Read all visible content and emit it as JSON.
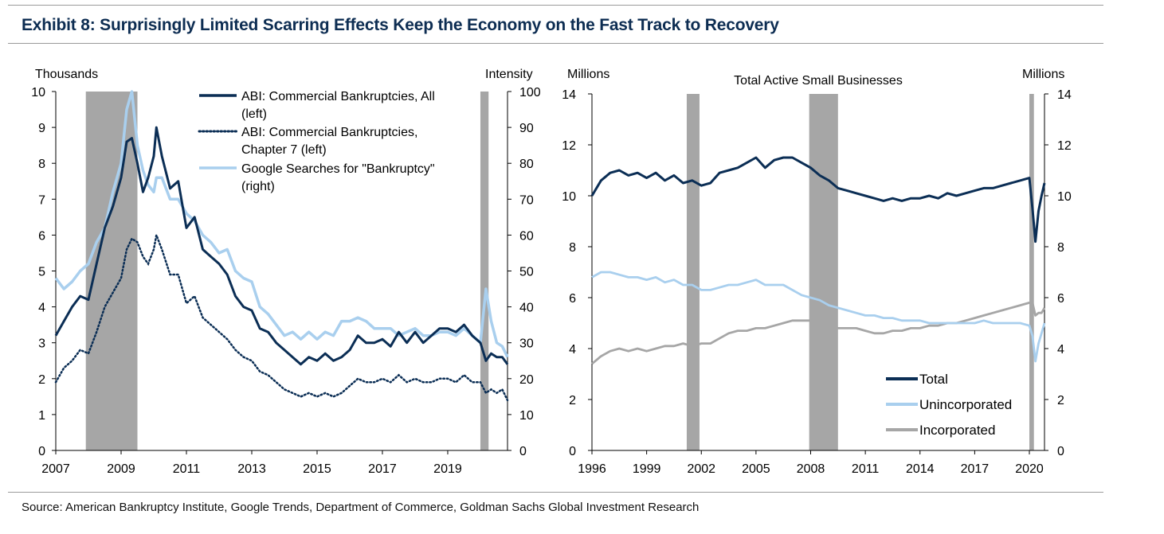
{
  "title": "Exhibit 8: Surprisingly Limited Scarring Effects Keep the Economy on the Fast Track to Recovery",
  "source": "Source: American Bankruptcy Institute, Google Trends, Department of Commerce, Goldman Sachs Global Investment Research",
  "colors": {
    "navy": "#0b2e55",
    "light_blue": "#a9cfee",
    "gray": "#a6a6a6",
    "recession": "#a6a6a6"
  },
  "chart_data": [
    {
      "type": "line",
      "title": "",
      "ylabel_left": "Thousands",
      "ylabel_right": "Intensity",
      "xlim": [
        2007,
        2020.83
      ],
      "ylim_left": [
        0,
        10
      ],
      "ylim_right": [
        0,
        100
      ],
      "x_ticks": [
        "2007",
        "2009",
        "2011",
        "2013",
        "2015",
        "2017",
        "2019"
      ],
      "x_tick_values": [
        2007,
        2009,
        2011,
        2013,
        2015,
        2017,
        2019
      ],
      "y_ticks_left": [
        "0",
        "1",
        "2",
        "3",
        "4",
        "5",
        "6",
        "7",
        "8",
        "9",
        "10"
      ],
      "y_ticks_right": [
        "0",
        "10",
        "20",
        "30",
        "40",
        "50",
        "60",
        "70",
        "80",
        "90",
        "100"
      ],
      "recessions": [
        [
          2007.92,
          2009.5
        ],
        [
          2020.0,
          2020.25
        ]
      ],
      "legend": [
        {
          "label_lines": [
            "ABI: Commercial Bankruptcies, All",
            "(left)"
          ],
          "style": "solid",
          "color": "#0b2e55"
        },
        {
          "label_lines": [
            "ABI: Commercial Bankruptcies,",
            "Chapter 7 (left)"
          ],
          "style": "dotted",
          "color": "#0b2e55"
        },
        {
          "label_lines": [
            "Google Searches for \"Bankruptcy\"",
            "(right)"
          ],
          "style": "solid",
          "color": "#a9cfee"
        }
      ],
      "series": [
        {
          "name": "ABI: Commercial Bankruptcies, All",
          "axis": "left",
          "x": [
            2007.0,
            2007.25,
            2007.5,
            2007.75,
            2008.0,
            2008.25,
            2008.5,
            2008.75,
            2009.0,
            2009.17,
            2009.33,
            2009.5,
            2009.67,
            2009.83,
            2010.0,
            2010.08,
            2010.25,
            2010.5,
            2010.75,
            2011.0,
            2011.25,
            2011.5,
            2011.75,
            2012.0,
            2012.25,
            2012.5,
            2012.75,
            2013.0,
            2013.25,
            2013.5,
            2013.75,
            2014.0,
            2014.25,
            2014.5,
            2014.75,
            2015.0,
            2015.25,
            2015.5,
            2015.75,
            2016.0,
            2016.25,
            2016.5,
            2016.75,
            2017.0,
            2017.25,
            2017.5,
            2017.75,
            2018.0,
            2018.25,
            2018.5,
            2018.75,
            2019.0,
            2019.25,
            2019.5,
            2019.75,
            2020.0,
            2020.17,
            2020.33,
            2020.5,
            2020.67,
            2020.83
          ],
          "values": [
            3.2,
            3.6,
            4.0,
            4.3,
            4.2,
            5.2,
            6.2,
            6.8,
            7.6,
            8.6,
            8.7,
            8.0,
            7.2,
            7.6,
            8.2,
            9.0,
            8.2,
            7.3,
            7.5,
            6.2,
            6.5,
            5.6,
            5.4,
            5.2,
            4.9,
            4.3,
            4.0,
            3.9,
            3.4,
            3.3,
            3.0,
            2.8,
            2.6,
            2.4,
            2.6,
            2.5,
            2.7,
            2.5,
            2.6,
            2.8,
            3.2,
            3.0,
            3.0,
            3.1,
            2.9,
            3.3,
            3.0,
            3.3,
            3.0,
            3.2,
            3.4,
            3.4,
            3.3,
            3.5,
            3.2,
            3.0,
            2.5,
            2.7,
            2.6,
            2.6,
            2.4
          ]
        },
        {
          "name": "ABI: Commercial Bankruptcies, Chapter 7",
          "axis": "left",
          "x": [
            2007.0,
            2007.25,
            2007.5,
            2007.75,
            2008.0,
            2008.25,
            2008.5,
            2008.75,
            2009.0,
            2009.17,
            2009.33,
            2009.5,
            2009.67,
            2009.83,
            2010.0,
            2010.08,
            2010.25,
            2010.5,
            2010.75,
            2011.0,
            2011.25,
            2011.5,
            2011.75,
            2012.0,
            2012.25,
            2012.5,
            2012.75,
            2013.0,
            2013.25,
            2013.5,
            2013.75,
            2014.0,
            2014.25,
            2014.5,
            2014.75,
            2015.0,
            2015.25,
            2015.5,
            2015.75,
            2016.0,
            2016.25,
            2016.5,
            2016.75,
            2017.0,
            2017.25,
            2017.5,
            2017.75,
            2018.0,
            2018.25,
            2018.5,
            2018.75,
            2019.0,
            2019.25,
            2019.5,
            2019.75,
            2020.0,
            2020.17,
            2020.33,
            2020.5,
            2020.67,
            2020.83
          ],
          "values": [
            1.9,
            2.3,
            2.5,
            2.8,
            2.7,
            3.3,
            4.0,
            4.4,
            4.8,
            5.6,
            5.9,
            5.8,
            5.4,
            5.2,
            5.6,
            6.0,
            5.6,
            4.9,
            4.9,
            4.1,
            4.3,
            3.7,
            3.5,
            3.3,
            3.1,
            2.8,
            2.6,
            2.5,
            2.2,
            2.1,
            1.9,
            1.7,
            1.6,
            1.5,
            1.6,
            1.5,
            1.6,
            1.5,
            1.6,
            1.8,
            2.0,
            1.9,
            1.9,
            2.0,
            1.9,
            2.1,
            1.9,
            2.0,
            1.9,
            1.9,
            2.0,
            2.0,
            1.9,
            2.1,
            1.9,
            1.9,
            1.6,
            1.7,
            1.6,
            1.7,
            1.4
          ]
        },
        {
          "name": "Google Searches for \"Bankruptcy\"",
          "axis": "right",
          "x": [
            2007.0,
            2007.25,
            2007.5,
            2007.75,
            2008.0,
            2008.25,
            2008.5,
            2008.75,
            2009.0,
            2009.17,
            2009.33,
            2009.5,
            2009.67,
            2009.83,
            2010.0,
            2010.08,
            2010.25,
            2010.5,
            2010.75,
            2011.0,
            2011.25,
            2011.5,
            2011.75,
            2012.0,
            2012.25,
            2012.5,
            2012.75,
            2013.0,
            2013.25,
            2013.5,
            2013.75,
            2014.0,
            2014.25,
            2014.5,
            2014.75,
            2015.0,
            2015.25,
            2015.5,
            2015.75,
            2016.0,
            2016.25,
            2016.5,
            2016.75,
            2017.0,
            2017.25,
            2017.5,
            2017.75,
            2018.0,
            2018.25,
            2018.5,
            2018.75,
            2019.0,
            2019.25,
            2019.5,
            2019.75,
            2020.0,
            2020.17,
            2020.33,
            2020.5,
            2020.67,
            2020.83
          ],
          "values": [
            48,
            45,
            47,
            50,
            52,
            58,
            62,
            72,
            80,
            95,
            100,
            85,
            78,
            74,
            72,
            76,
            76,
            70,
            70,
            66,
            64,
            60,
            58,
            55,
            56,
            50,
            48,
            47,
            40,
            38,
            35,
            32,
            33,
            31,
            33,
            31,
            33,
            32,
            36,
            36,
            37,
            36,
            34,
            34,
            34,
            32,
            33,
            34,
            32,
            32,
            33,
            33,
            32,
            34,
            32,
            30,
            45,
            36,
            30,
            29,
            26
          ]
        }
      ]
    },
    {
      "type": "line",
      "title": "Total Active Small Businesses",
      "ylabel_left": "Millions",
      "ylabel_right": "Millions",
      "xlim": [
        1996,
        2020.83
      ],
      "ylim_left": [
        0,
        14
      ],
      "ylim_right": [
        0,
        14
      ],
      "x_ticks": [
        "1996",
        "1999",
        "2002",
        "2005",
        "2008",
        "2011",
        "2014",
        "2017",
        "2020"
      ],
      "x_tick_values": [
        1996,
        1999,
        2002,
        2005,
        2008,
        2011,
        2014,
        2017,
        2020
      ],
      "y_ticks_left": [
        "0",
        "2",
        "4",
        "6",
        "8",
        "10",
        "12",
        "14"
      ],
      "y_ticks_right": [
        "0",
        "2",
        "4",
        "6",
        "8",
        "10",
        "12",
        "14"
      ],
      "recessions": [
        [
          2001.2,
          2001.9
        ],
        [
          2007.92,
          2009.5
        ],
        [
          2020.0,
          2020.25
        ]
      ],
      "legend": [
        {
          "label": "Total",
          "color": "#0b2e55"
        },
        {
          "label": "Unincorporated",
          "color": "#a9cfee"
        },
        {
          "label": "Incorporated",
          "color": "#a6a6a6"
        }
      ],
      "series": [
        {
          "name": "Total",
          "x": [
            1996.0,
            1996.5,
            1997.0,
            1997.5,
            1998.0,
            1998.5,
            1999.0,
            1999.5,
            2000.0,
            2000.5,
            2001.0,
            2001.5,
            2002.0,
            2002.5,
            2003.0,
            2003.5,
            2004.0,
            2004.5,
            2005.0,
            2005.5,
            2006.0,
            2006.5,
            2007.0,
            2007.5,
            2008.0,
            2008.5,
            2009.0,
            2009.5,
            2010.0,
            2010.5,
            2011.0,
            2011.5,
            2012.0,
            2012.5,
            2013.0,
            2013.5,
            2014.0,
            2014.5,
            2015.0,
            2015.5,
            2016.0,
            2016.5,
            2017.0,
            2017.5,
            2018.0,
            2018.5,
            2019.0,
            2019.5,
            2020.0,
            2020.17,
            2020.33,
            2020.5,
            2020.67,
            2020.83
          ],
          "values": [
            10.0,
            10.6,
            10.9,
            11.0,
            10.8,
            10.9,
            10.7,
            10.9,
            10.6,
            10.8,
            10.5,
            10.6,
            10.4,
            10.5,
            10.9,
            11.0,
            11.1,
            11.3,
            11.5,
            11.1,
            11.4,
            11.5,
            11.5,
            11.3,
            11.1,
            10.8,
            10.6,
            10.3,
            10.2,
            10.1,
            10.0,
            9.9,
            9.8,
            9.9,
            9.8,
            9.9,
            9.9,
            10.0,
            9.9,
            10.1,
            10.0,
            10.1,
            10.2,
            10.3,
            10.3,
            10.4,
            10.5,
            10.6,
            10.7,
            9.5,
            8.2,
            9.4,
            10.0,
            10.5
          ]
        },
        {
          "name": "Unincorporated",
          "x": [
            1996.0,
            1996.5,
            1997.0,
            1997.5,
            1998.0,
            1998.5,
            1999.0,
            1999.5,
            2000.0,
            2000.5,
            2001.0,
            2001.5,
            2002.0,
            2002.5,
            2003.0,
            2003.5,
            2004.0,
            2004.5,
            2005.0,
            2005.5,
            2006.0,
            2006.5,
            2007.0,
            2007.5,
            2008.0,
            2008.5,
            2009.0,
            2009.5,
            2010.0,
            2010.5,
            2011.0,
            2011.5,
            2012.0,
            2012.5,
            2013.0,
            2013.5,
            2014.0,
            2014.5,
            2015.0,
            2015.5,
            2016.0,
            2016.5,
            2017.0,
            2017.5,
            2018.0,
            2018.5,
            2019.0,
            2019.5,
            2020.0,
            2020.17,
            2020.33,
            2020.5,
            2020.67,
            2020.83
          ],
          "values": [
            6.8,
            7.0,
            7.0,
            6.9,
            6.8,
            6.8,
            6.7,
            6.8,
            6.6,
            6.7,
            6.5,
            6.5,
            6.3,
            6.3,
            6.4,
            6.5,
            6.5,
            6.6,
            6.7,
            6.5,
            6.5,
            6.5,
            6.3,
            6.1,
            6.0,
            5.9,
            5.7,
            5.6,
            5.5,
            5.4,
            5.3,
            5.3,
            5.2,
            5.2,
            5.1,
            5.1,
            5.1,
            5.0,
            5.0,
            5.0,
            5.0,
            5.0,
            5.0,
            5.1,
            5.0,
            5.0,
            5.0,
            5.0,
            4.9,
            4.5,
            3.5,
            4.2,
            4.6,
            5.0
          ]
        },
        {
          "name": "Incorporated",
          "x": [
            1996.0,
            1996.5,
            1997.0,
            1997.5,
            1998.0,
            1998.5,
            1999.0,
            1999.5,
            2000.0,
            2000.5,
            2001.0,
            2001.5,
            2002.0,
            2002.5,
            2003.0,
            2003.5,
            2004.0,
            2004.5,
            2005.0,
            2005.5,
            2006.0,
            2006.5,
            2007.0,
            2007.5,
            2008.0,
            2008.5,
            2009.0,
            2009.5,
            2010.0,
            2010.5,
            2011.0,
            2011.5,
            2012.0,
            2012.5,
            2013.0,
            2013.5,
            2014.0,
            2014.5,
            2015.0,
            2015.5,
            2016.0,
            2016.5,
            2017.0,
            2017.5,
            2018.0,
            2018.5,
            2019.0,
            2019.5,
            2020.0,
            2020.17,
            2020.33,
            2020.5,
            2020.67,
            2020.83
          ],
          "values": [
            3.4,
            3.7,
            3.9,
            4.0,
            3.9,
            4.0,
            3.9,
            4.0,
            4.1,
            4.1,
            4.2,
            4.1,
            4.2,
            4.2,
            4.4,
            4.6,
            4.7,
            4.7,
            4.8,
            4.8,
            4.9,
            5.0,
            5.1,
            5.1,
            5.1,
            5.0,
            4.9,
            4.8,
            4.8,
            4.8,
            4.7,
            4.6,
            4.6,
            4.7,
            4.7,
            4.8,
            4.8,
            4.9,
            4.9,
            5.0,
            5.0,
            5.1,
            5.2,
            5.3,
            5.4,
            5.5,
            5.6,
            5.7,
            5.8,
            5.8,
            5.3,
            5.4,
            5.4,
            5.6
          ]
        }
      ]
    }
  ]
}
